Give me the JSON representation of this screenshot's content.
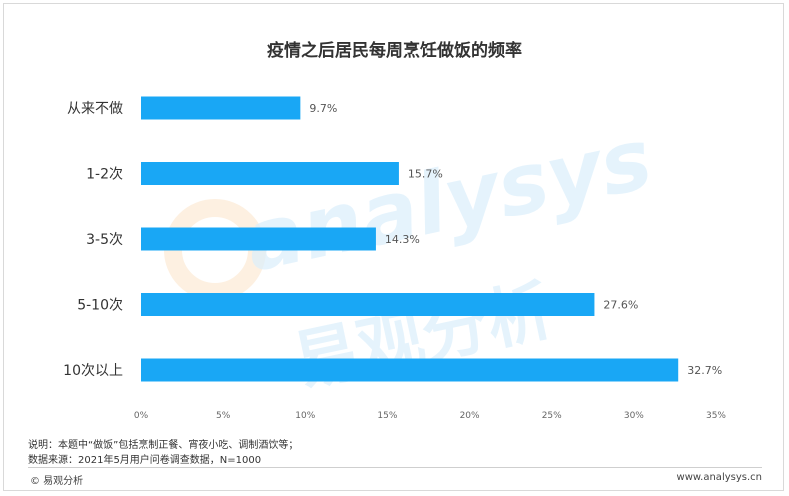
{
  "chart_data": {
    "type": "bar",
    "orientation": "horizontal",
    "title": "疫情之后居民每周烹饪做饭的频率",
    "categories": [
      "从来不做",
      "1-2次",
      "3-5次",
      "5-10次",
      "10次以上"
    ],
    "values": [
      9.7,
      15.7,
      14.3,
      27.6,
      32.7
    ],
    "value_labels": [
      "9.7%",
      "15.7%",
      "14.3%",
      "27.6%",
      "32.7%"
    ],
    "xlim": [
      0,
      35
    ],
    "x_ticks": [
      0,
      5,
      10,
      15,
      20,
      25,
      30,
      35
    ],
    "x_tick_labels": [
      "0%",
      "5%",
      "10%",
      "15%",
      "20%",
      "25%",
      "30%",
      "35%"
    ],
    "grid": false,
    "bar_color": "#19a7f5"
  },
  "notes": {
    "line1": "说明：本题中“做饭”包括烹制正餐、宵夜小吃、调制酒饮等；",
    "line2": "数据来源：2021年5月用户问卷调查数据，N=1000"
  },
  "footer": {
    "brand": "© 易观分析",
    "url": "www.analysys.cn"
  },
  "watermark": {
    "latin": "analysys",
    "cjk": "易观分析"
  }
}
